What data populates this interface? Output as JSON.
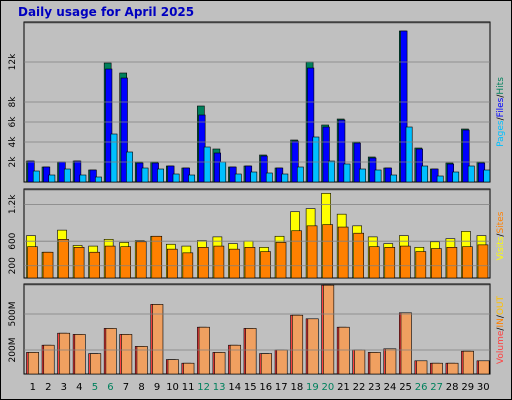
{
  "title": "Daily usage for April 2025",
  "colors": {
    "hits": "#00805c",
    "files": "#0000ff",
    "pages": "#00c0ff",
    "visits": "#ffff00",
    "sites": "#ff8000",
    "volume": "#ff4040",
    "in": "#ff8000",
    "out": "#ffc000",
    "weekend": "#00805c",
    "weekday": "#000000",
    "title": "#0000c0"
  },
  "chart_data": [
    {
      "type": "bar",
      "title": "Daily usage for April 2025",
      "x": [
        1,
        2,
        3,
        4,
        5,
        6,
        7,
        8,
        9,
        10,
        11,
        12,
        13,
        14,
        15,
        16,
        17,
        18,
        19,
        20,
        21,
        22,
        23,
        24,
        25,
        26,
        27,
        28,
        29,
        30
      ],
      "weekend_days": [
        5,
        6,
        12,
        13,
        19,
        20,
        26,
        27
      ],
      "series": [
        {
          "name": "Hits",
          "values": [
            2100,
            1500,
            2000,
            2100,
            1200,
            11900,
            10900,
            2000,
            2000,
            1600,
            1400,
            7600,
            3300,
            1500,
            1600,
            2700,
            1400,
            4200,
            12000,
            5700,
            6300,
            4000,
            2500,
            1400,
            15100,
            3400,
            1300,
            1900,
            5300,
            2000
          ]
        },
        {
          "name": "Files",
          "values": [
            2100,
            1500,
            2000,
            2100,
            1200,
            11300,
            10400,
            1900,
            1900,
            1600,
            1400,
            6700,
            2900,
            1500,
            1600,
            2600,
            1400,
            4100,
            11400,
            5500,
            6200,
            3900,
            2400,
            1400,
            15100,
            3300,
            1300,
            1800,
            5200,
            1900
          ]
        },
        {
          "name": "Pages",
          "values": [
            1100,
            700,
            1300,
            700,
            500,
            4800,
            3000,
            1400,
            1300,
            800,
            700,
            3500,
            2000,
            800,
            1000,
            900,
            800,
            1500,
            4500,
            2100,
            1800,
            1300,
            1200,
            700,
            5500,
            1600,
            600,
            1000,
            1600,
            1200
          ]
        }
      ],
      "ylabel": "Pages / Files / Hits",
      "yticks": [
        "2k",
        "4k",
        "6k",
        "8k",
        "12k"
      ],
      "ylim": [
        0,
        16000
      ]
    },
    {
      "type": "bar",
      "x": [
        1,
        2,
        3,
        4,
        5,
        6,
        7,
        8,
        9,
        10,
        11,
        12,
        13,
        14,
        15,
        16,
        17,
        18,
        19,
        20,
        21,
        22,
        23,
        24,
        25,
        26,
        27,
        28,
        29,
        30
      ],
      "series": [
        {
          "name": "Visits",
          "values": [
            690,
            420,
            780,
            530,
            520,
            630,
            580,
            610,
            680,
            550,
            520,
            610,
            670,
            560,
            600,
            500,
            680,
            1080,
            1130,
            1380,
            1040,
            850,
            670,
            560,
            690,
            500,
            590,
            640,
            760,
            690
          ]
        },
        {
          "name": "Sites",
          "values": [
            510,
            420,
            630,
            500,
            420,
            520,
            510,
            590,
            680,
            470,
            410,
            500,
            520,
            470,
            500,
            430,
            580,
            770,
            850,
            870,
            830,
            730,
            510,
            500,
            520,
            430,
            480,
            500,
            510,
            540
          ]
        }
      ],
      "ylabel": "Visits / Sites",
      "yticks": [
        "200",
        "600",
        "1.2k"
      ],
      "ylim": [
        0,
        1450
      ]
    },
    {
      "type": "bar",
      "x": [
        1,
        2,
        3,
        4,
        5,
        6,
        7,
        8,
        9,
        10,
        11,
        12,
        13,
        14,
        15,
        16,
        17,
        18,
        19,
        20,
        21,
        22,
        23,
        24,
        25,
        26,
        27,
        28,
        29,
        30
      ],
      "series": [
        {
          "name": "Volume",
          "values": [
            180,
            240,
            340,
            330,
            170,
            380,
            330,
            230,
            580,
            120,
            90,
            390,
            180,
            240,
            380,
            170,
            200,
            490,
            460,
            740,
            390,
            200,
            180,
            210,
            510,
            110,
            90,
            90,
            190,
            110
          ]
        }
      ],
      "ylabel": "Volume / IN / OUT",
      "yticks": [
        "200M",
        "500M"
      ],
      "ylim": [
        0,
        750
      ]
    }
  ],
  "axis": {
    "panel1_ticks": [
      "2k",
      "4k",
      "6k",
      "8k",
      "12k"
    ],
    "panel2_ticks": [
      "200",
      "600",
      "1.2k"
    ],
    "panel3_ticks": [
      "200M",
      "500M"
    ]
  },
  "side_labels": {
    "top": [
      "Pages",
      "/",
      "Files",
      "/",
      "Hits"
    ],
    "mid": [
      "Visits",
      "/",
      "Sites"
    ],
    "bot": [
      "Volume",
      "/",
      "IN",
      "/",
      "OUT"
    ]
  }
}
